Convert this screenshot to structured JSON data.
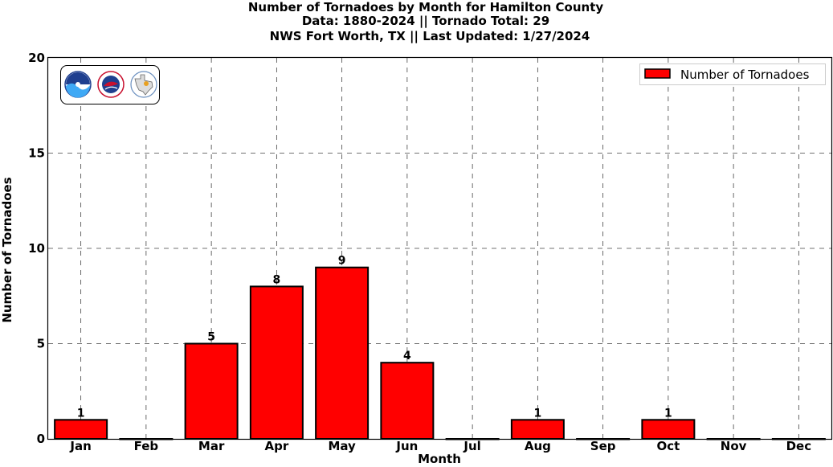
{
  "chart_data": {
    "type": "bar",
    "title_lines": [
      "Number of Tornadoes by Month for Hamilton County",
      "Data: 1880-2024 || Tornado Total: 29",
      "NWS Fort Worth, TX || Last Updated: 1/27/2024"
    ],
    "xlabel": "Month",
    "ylabel": "Number of Tornadoes",
    "categories": [
      "Jan",
      "Feb",
      "Mar",
      "Apr",
      "May",
      "Jun",
      "Jul",
      "Aug",
      "Sep",
      "Oct",
      "Nov",
      "Dec"
    ],
    "series": [
      {
        "name": "Number of Tornadoes",
        "values": [
          1,
          0,
          5,
          8,
          9,
          4,
          0,
          1,
          0,
          1,
          0,
          0
        ],
        "data_labels": [
          "1",
          "",
          "5",
          "8",
          "9",
          "4",
          "",
          "1",
          "",
          "1",
          "",
          ""
        ]
      }
    ],
    "ylim": [
      0,
      20
    ],
    "yticks": [
      0,
      5,
      10,
      15,
      20
    ],
    "grid": true,
    "legend_position": "top-right",
    "bar_color": "#ff0000",
    "edge_color": "#000000",
    "logos": [
      "noaa-logo",
      "nws-logo",
      "texas-logo"
    ]
  }
}
